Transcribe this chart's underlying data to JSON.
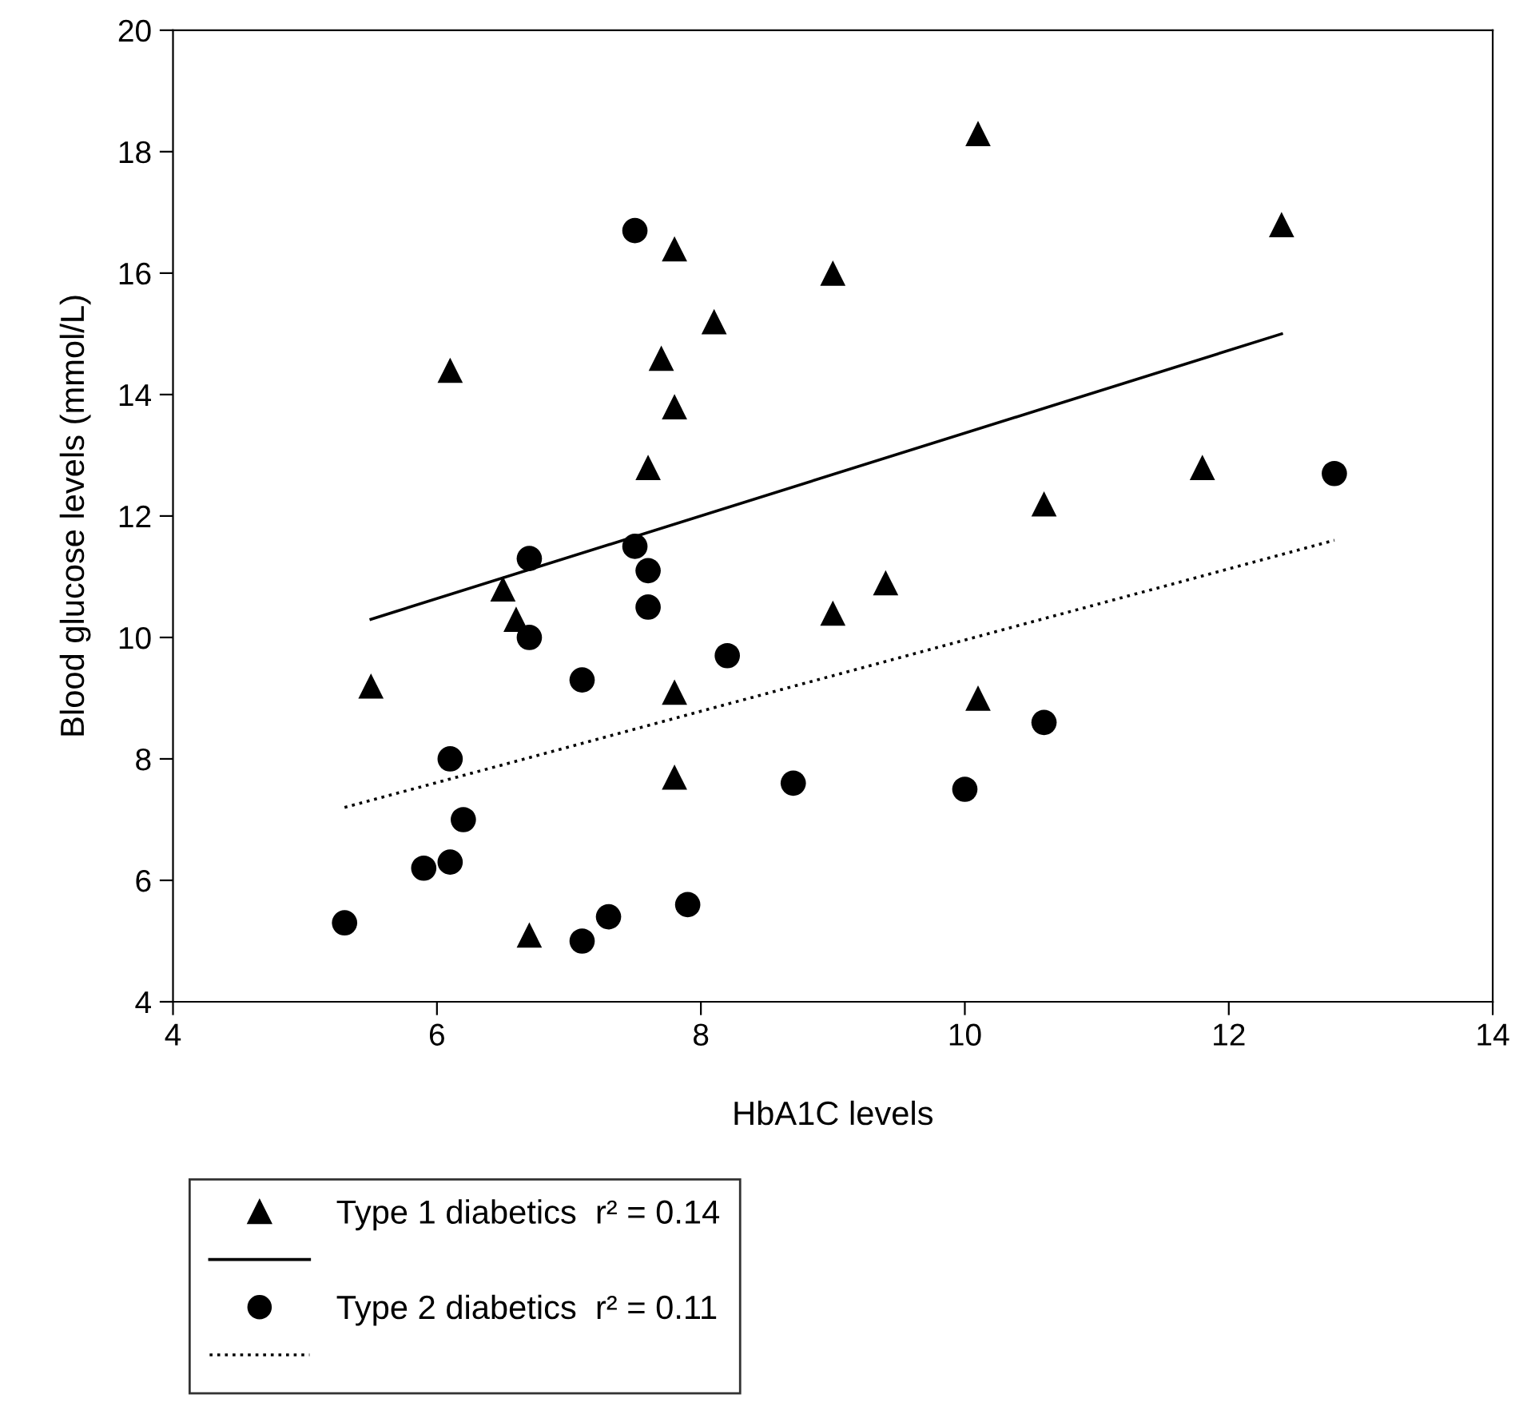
{
  "chart_data": {
    "type": "scatter",
    "xlabel": "HbA1C levels",
    "ylabel": "Blood glucose levels (mmol/L)",
    "xlim": [
      4,
      14
    ],
    "xticks": [
      4,
      6,
      8,
      10,
      12,
      14
    ],
    "ylim": [
      4,
      20
    ],
    "yticks": [
      4,
      6,
      8,
      10,
      12,
      14,
      16,
      18,
      20
    ],
    "grid": false,
    "legend": "bottom left",
    "series": [
      {
        "name": "Type 1 diabetics  r² = 0.14",
        "marker": "triangle",
        "color": "#000000",
        "x": [
          5.5,
          6.1,
          6.5,
          6.6,
          6.7,
          7.6,
          7.7,
          7.8,
          7.8,
          7.8,
          7.8,
          8.1,
          9.0,
          9.0,
          9.4,
          10.1,
          10.1,
          10.6,
          11.8,
          12.4
        ],
        "values": [
          9.2,
          14.4,
          10.8,
          10.3,
          5.1,
          12.8,
          14.6,
          13.8,
          16.4,
          9.1,
          7.7,
          15.2,
          16.0,
          10.4,
          10.9,
          18.3,
          9.0,
          12.2,
          12.8,
          16.8
        ]
      },
      {
        "type": "line",
        "line_style": "solid",
        "color": "#000000",
        "x": [
          5.5,
          12.4
        ],
        "values": [
          10.3,
          15.0
        ]
      },
      {
        "name": "Type 2 diabetics  r² = 0.11",
        "marker": "circle",
        "color": "#000000",
        "x": [
          5.3,
          5.9,
          6.1,
          6.1,
          6.2,
          6.7,
          6.7,
          7.1,
          7.1,
          7.3,
          7.5,
          7.5,
          7.6,
          7.6,
          7.9,
          8.2,
          8.7,
          10.0,
          10.6,
          12.8
        ],
        "values": [
          5.3,
          6.2,
          6.3,
          8.0,
          7.0,
          11.3,
          10.0,
          9.3,
          5.0,
          5.4,
          16.7,
          11.5,
          11.1,
          10.5,
          5.6,
          9.7,
          7.6,
          7.5,
          8.6,
          12.7
        ]
      },
      {
        "type": "line",
        "line_style": "dotted",
        "color": "#000000",
        "x": [
          5.3,
          12.8
        ],
        "values": [
          7.2,
          11.6
        ]
      }
    ]
  }
}
